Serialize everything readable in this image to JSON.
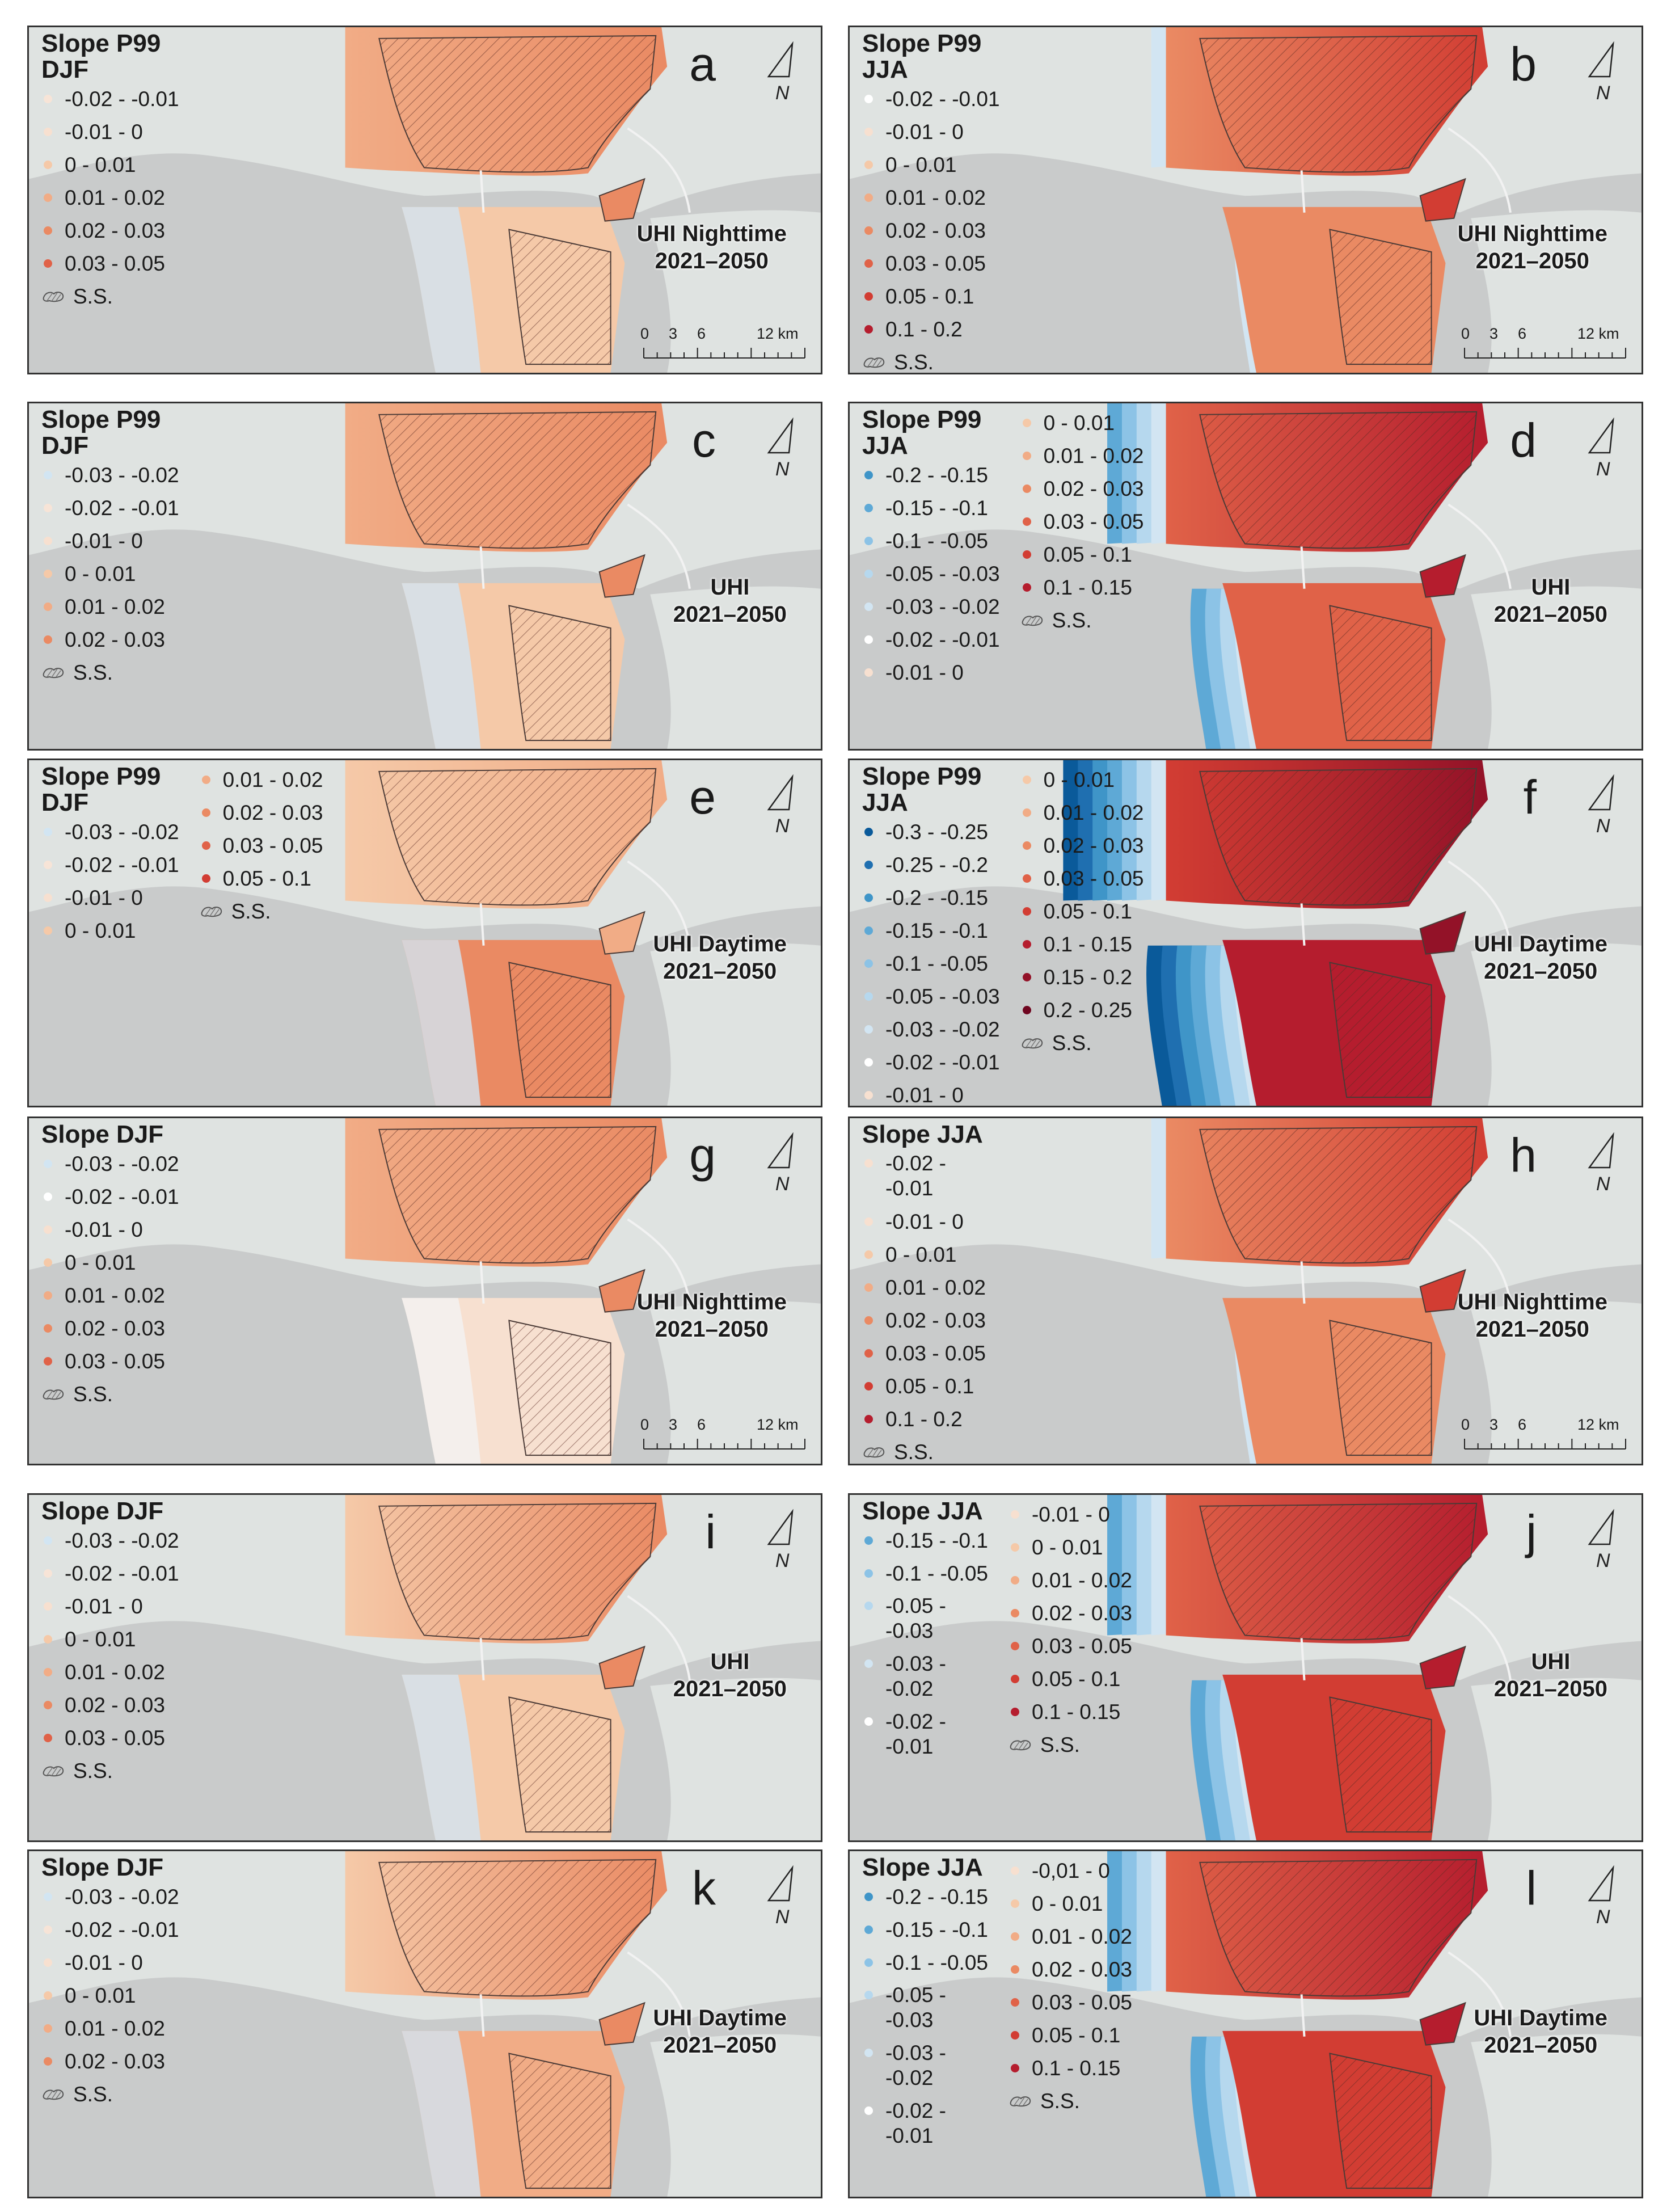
{
  "colors": {
    "ocean": "#c9cbcb",
    "land": "#dfe3e1",
    "border": "#333333",
    "classes": {
      "n30_25": "#0a5a9a",
      "n25_20": "#1f6fb0",
      "n20_15": "#3f95c8",
      "n15_10": "#5ea9d6",
      "n10_05": "#8cc3e6",
      "n05_03": "#b6d8ee",
      "n03_02": "#d2e5f2",
      "n02_01": "#ffffff",
      "n01_0": "#f7e0d0",
      "z0_01": "#f5c9a8",
      "z01_02": "#f1ac86",
      "z02_03": "#ea8a63",
      "z03_05": "#e06248",
      "z05_10": "#d23d33",
      "z10_15": "#b51d2e",
      "z15_20": "#931228",
      "z20_25": "#6f0620",
      "djf_n02_01": "#f7e4d7"
    }
  },
  "panels": [
    {
      "letter": "a",
      "uhi_title": "UHI Nighttime",
      "uhi_period": "2021–2050",
      "legend": {
        "title": "Slope P99\nDJF",
        "columns": [
          [
            {
              "label": "-0.02 - -0.01",
              "color": "djf_n02_01"
            },
            {
              "label": "-0.01 - 0",
              "color": "n01_0"
            },
            {
              "label": "0 - 0.01",
              "color": "z0_01"
            },
            {
              "label": "0.01 - 0.02",
              "color": "z01_02"
            },
            {
              "label": "0.02 - 0.03",
              "color": "z02_03"
            },
            {
              "label": "0.03 - 0.05",
              "color": "z03_05"
            }
          ]
        ]
      },
      "ss_label": "S.S.",
      "scale": {
        "ticks": [
          "0",
          "3",
          "6",
          "12 km"
        ]
      }
    },
    {
      "letter": "b",
      "uhi_title": "UHI Nighttime",
      "uhi_period": "2021–2050",
      "legend": {
        "title": "Slope P99\nJJA",
        "columns": [
          [
            {
              "label": "-0.02 - -0.01",
              "color": "n02_01"
            },
            {
              "label": "-0.01 - 0",
              "color": "n01_0"
            },
            {
              "label": "0 - 0.01",
              "color": "z0_01"
            },
            {
              "label": "0.01 - 0.02",
              "color": "z01_02"
            },
            {
              "label": "0.02 - 0.03",
              "color": "z02_03"
            },
            {
              "label": "0.03 - 0.05",
              "color": "z03_05"
            },
            {
              "label": "0.05 - 0.1",
              "color": "z05_10"
            },
            {
              "label": "0.1 - 0.2",
              "color": "z10_15"
            }
          ]
        ]
      },
      "ss_label": "S.S.",
      "scale": {
        "ticks": [
          "0",
          "3",
          "6",
          "12 km"
        ]
      }
    },
    {
      "letter": "c",
      "uhi_title": "UHI",
      "uhi_period": "2021–2050",
      "legend": {
        "title": "Slope P99\nDJF",
        "columns": [
          [
            {
              "label": "-0.03 - -0.02",
              "color": "n03_02"
            },
            {
              "label": "-0.02 - -0.01",
              "color": "djf_n02_01"
            },
            {
              "label": "-0.01 - 0",
              "color": "n01_0"
            },
            {
              "label": "0 - 0.01",
              "color": "z0_01"
            },
            {
              "label": "0.01 - 0.02",
              "color": "z01_02"
            },
            {
              "label": "0.02 - 0.03",
              "color": "z02_03"
            }
          ]
        ]
      },
      "ss_label": "S.S."
    },
    {
      "letter": "d",
      "uhi_title": "UHI",
      "uhi_period": "2021–2050",
      "legend": {
        "title": "Slope P99\nJJA",
        "columns": [
          [
            {
              "label": "-0.2 - -0.15",
              "color": "n20_15"
            },
            {
              "label": "-0.15 - -0.1",
              "color": "n15_10"
            },
            {
              "label": "-0.1 - -0.05",
              "color": "n10_05"
            },
            {
              "label": "-0.05 - -0.03",
              "color": "n05_03"
            },
            {
              "label": "-0.03 - -0.02",
              "color": "n03_02"
            },
            {
              "label": "-0.02 - -0.01",
              "color": "n02_01"
            },
            {
              "label": "-0.01 - 0",
              "color": "n01_0"
            }
          ],
          [
            {
              "label": "0 - 0.01",
              "color": "z0_01"
            },
            {
              "label": "0.01 - 0.02",
              "color": "z01_02"
            },
            {
              "label": "0.02 - 0.03",
              "color": "z02_03"
            },
            {
              "label": "0.03 - 0.05",
              "color": "z03_05"
            },
            {
              "label": "0.05 - 0.1",
              "color": "z05_10"
            },
            {
              "label": "0.1 - 0.15",
              "color": "z10_15"
            }
          ]
        ]
      },
      "ss_label": "S.S."
    },
    {
      "letter": "e",
      "uhi_title": "UHI Daytime",
      "uhi_period": "2021–2050",
      "legend": {
        "title": "Slope P99\nDJF",
        "columns": [
          [
            {
              "label": "-0.03 - -0.02",
              "color": "n03_02"
            },
            {
              "label": "-0.02 - -0.01",
              "color": "djf_n02_01"
            },
            {
              "label": "-0.01 - 0",
              "color": "n01_0"
            },
            {
              "label": "0 - 0.01",
              "color": "z0_01"
            }
          ],
          [
            {
              "label": "0.01 - 0.02",
              "color": "z01_02"
            },
            {
              "label": "0.02 - 0.03",
              "color": "z02_03"
            },
            {
              "label": "0.03 - 0.05",
              "color": "z03_05"
            },
            {
              "label": "0.05 - 0.1",
              "color": "z05_10"
            }
          ]
        ]
      },
      "ss_label": "S.S."
    },
    {
      "letter": "f",
      "uhi_title": "UHI Daytime",
      "uhi_period": "2021–2050",
      "legend": {
        "title": "Slope P99\nJJA",
        "columns": [
          [
            {
              "label": "-0.3 - -0.25",
              "color": "n30_25"
            },
            {
              "label": "-0.25 - -0.2",
              "color": "n25_20"
            },
            {
              "label": "-0.2 - -0.15",
              "color": "n20_15"
            },
            {
              "label": "-0.15 - -0.1",
              "color": "n15_10"
            },
            {
              "label": "-0.1 - -0.05",
              "color": "n10_05"
            },
            {
              "label": "-0.05 - -0.03",
              "color": "n05_03"
            },
            {
              "label": "-0.03 - -0.02",
              "color": "n03_02"
            },
            {
              "label": "-0.02 - -0.01",
              "color": "n02_01"
            },
            {
              "label": "-0.01 - 0",
              "color": "n01_0"
            }
          ],
          [
            {
              "label": "0 - 0.01",
              "color": "z0_01"
            },
            {
              "label": "0.01 - 0.02",
              "color": "z01_02"
            },
            {
              "label": "0.02 - 0.03",
              "color": "z02_03"
            },
            {
              "label": "0.03 - 0.05",
              "color": "z03_05"
            },
            {
              "label": "0.05 - 0.1",
              "color": "z05_10"
            },
            {
              "label": "0.1 - 0.15",
              "color": "z10_15"
            },
            {
              "label": "0.15 - 0.2",
              "color": "z15_20"
            },
            {
              "label": "0.2 - 0.25",
              "color": "z20_25"
            }
          ]
        ]
      },
      "ss_label": "S.S."
    },
    {
      "letter": "g",
      "uhi_title": "UHI Nighttime",
      "uhi_period": "2021–2050",
      "legend": {
        "title": "Slope DJF",
        "columns": [
          [
            {
              "label": "-0.03 - -0.02",
              "color": "n03_02"
            },
            {
              "label": "-0.02 - -0.01",
              "color": "n02_01"
            },
            {
              "label": "-0.01 - 0",
              "color": "n01_0"
            },
            {
              "label": "0 - 0.01",
              "color": "z0_01"
            },
            {
              "label": "0.01 - 0.02",
              "color": "z01_02"
            },
            {
              "label": "0.02 - 0.03",
              "color": "z02_03"
            },
            {
              "label": "0.03 - 0.05",
              "color": "z03_05"
            }
          ]
        ]
      },
      "ss_label": "S.S.",
      "scale": {
        "ticks": [
          "0",
          "3",
          "6",
          "12 km"
        ]
      }
    },
    {
      "letter": "h",
      "uhi_title": "UHI Nighttime",
      "uhi_period": "2021–2050",
      "legend": {
        "title": "Slope JJA",
        "columns": [
          [
            {
              "label": "-0.02 -\n-0.01",
              "color": "n01_0",
              "wrap": true
            },
            {
              "label": "-0.01 - 0",
              "color": "n01_0"
            },
            {
              "label": "0 - 0.01",
              "color": "z0_01"
            },
            {
              "label": "0.01 - 0.02",
              "color": "z01_02"
            },
            {
              "label": "0.02 - 0.03",
              "color": "z02_03"
            },
            {
              "label": "0.03 - 0.05",
              "color": "z03_05"
            },
            {
              "label": "0.05 - 0.1",
              "color": "z05_10"
            },
            {
              "label": "0.1 - 0.2",
              "color": "z10_15"
            }
          ]
        ]
      },
      "ss_label": "S.S.",
      "scale": {
        "ticks": [
          "0",
          "3",
          "6",
          "12 km"
        ]
      }
    },
    {
      "letter": "i",
      "uhi_title": "UHI",
      "uhi_period": "2021–2050",
      "legend": {
        "title": "Slope DJF",
        "columns": [
          [
            {
              "label": "-0.03 - -0.02",
              "color": "n03_02"
            },
            {
              "label": "-0.02 - -0.01",
              "color": "djf_n02_01"
            },
            {
              "label": "-0.01 - 0",
              "color": "n01_0"
            },
            {
              "label": "0 - 0.01",
              "color": "z0_01"
            },
            {
              "label": "0.01 - 0.02",
              "color": "z01_02"
            },
            {
              "label": "0.02 - 0.03",
              "color": "z02_03"
            },
            {
              "label": "0.03 - 0.05",
              "color": "z03_05"
            }
          ]
        ]
      },
      "ss_label": "S.S."
    },
    {
      "letter": "j",
      "uhi_title": "UHI",
      "uhi_period": "2021–2050",
      "legend": {
        "title": "Slope JJA",
        "columns": [
          [
            {
              "label": "-0.15 - -0.1",
              "color": "n15_10"
            },
            {
              "label": "-0.1 - -0.05",
              "color": "n10_05"
            },
            {
              "label": "-0.05 -\n-0.03",
              "color": "n05_03",
              "wrap": true
            },
            {
              "label": "-0.03 -\n-0.02",
              "color": "n03_02",
              "wrap": true
            },
            {
              "label": "-0.02 -\n-0.01",
              "color": "n02_01",
              "wrap": true
            }
          ],
          [
            {
              "label": "-0.01 - 0",
              "color": "n01_0"
            },
            {
              "label": "0 - 0.01",
              "color": "z0_01"
            },
            {
              "label": "0.01 - 0.02",
              "color": "z01_02"
            },
            {
              "label": "0.02 - 0.03",
              "color": "z02_03"
            },
            {
              "label": "0.03 - 0.05",
              "color": "z03_05"
            },
            {
              "label": "0.05 - 0.1",
              "color": "z05_10"
            },
            {
              "label": "0.1 - 0.15",
              "color": "z10_15"
            }
          ]
        ]
      },
      "ss_label": "S.S."
    },
    {
      "letter": "k",
      "uhi_title": "UHI Daytime",
      "uhi_period": "2021–2050",
      "legend": {
        "title": "Slope DJF",
        "columns": [
          [
            {
              "label": "-0.03 - -0.02",
              "color": "n03_02"
            },
            {
              "label": "-0.02 - -0.01",
              "color": "djf_n02_01"
            },
            {
              "label": "-0.01 - 0",
              "color": "n01_0"
            },
            {
              "label": "0 - 0.01",
              "color": "z0_01"
            },
            {
              "label": "0.01 - 0.02",
              "color": "z01_02"
            },
            {
              "label": "0.02 - 0.03",
              "color": "z02_03"
            }
          ]
        ]
      },
      "ss_label": "S.S."
    },
    {
      "letter": "l",
      "uhi_title": "UHI Daytime",
      "uhi_period": "2021–2050",
      "legend": {
        "title": "Slope JJA",
        "columns": [
          [
            {
              "label": "-0.2 - -0.15",
              "color": "n20_15"
            },
            {
              "label": "-0.15 - -0.1",
              "color": "n15_10"
            },
            {
              "label": "-0.1 - -0.05",
              "color": "n10_05"
            },
            {
              "label": "-0.05 -\n-0.03",
              "color": "n05_03",
              "wrap": true
            },
            {
              "label": "-0.03 -\n-0.02",
              "color": "n03_02",
              "wrap": true
            },
            {
              "label": "-0.02 -\n-0.01",
              "color": "n02_01",
              "wrap": true
            }
          ],
          [
            {
              "label": "-0,01 - 0",
              "color": "n01_0"
            },
            {
              "label": "0 - 0.01",
              "color": "z0_01"
            },
            {
              "label": "0.01 - 0.02",
              "color": "z01_02"
            },
            {
              "label": "0.02 - 0.03",
              "color": "z02_03"
            },
            {
              "label": "0.03 - 0.05",
              "color": "z03_05"
            },
            {
              "label": "0.05 - 0.1",
              "color": "z05_10"
            },
            {
              "label": "0.1 - 0.15",
              "color": "z10_15"
            }
          ]
        ]
      },
      "ss_label": "S.S."
    }
  ]
}
